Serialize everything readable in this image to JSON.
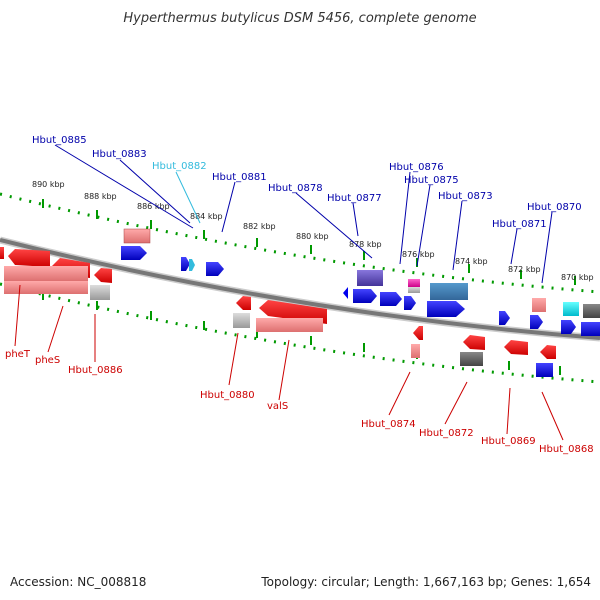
{
  "title": "Hyperthermus butylicus DSM 5456, complete genome",
  "footer": {
    "accession": "Accession: NC_008818",
    "topology": "Topology: circular; Length: 1,667,163 bp; Genes: 1,654"
  },
  "colors": {
    "forward_gene": "#0000ee",
    "reverse_gene": "#ee0000",
    "forward_label": "#0000aa",
    "reverse_label": "#cc0000",
    "highlight_label": "#33bbdd",
    "axis_tick": "#009900",
    "backbone": "#888888"
  },
  "scale_ticks": [
    {
      "label": "890 kbp"
    },
    {
      "label": "888 kbp"
    },
    {
      "label": "886 kbp"
    },
    {
      "label": "884 kbp"
    },
    {
      "label": "882 kbp"
    },
    {
      "label": "880 kbp"
    },
    {
      "label": "878 kbp"
    },
    {
      "label": "876 kbp"
    },
    {
      "label": "874 kbp"
    },
    {
      "label": "872 kbp"
    },
    {
      "label": "870 kbp"
    }
  ],
  "top_labels": [
    {
      "text": "Hbut_0885",
      "color": "#0000aa"
    },
    {
      "text": "Hbut_0883",
      "color": "#0000aa"
    },
    {
      "text": "Hbut_0882",
      "color": "#33bbdd"
    },
    {
      "text": "Hbut_0881",
      "color": "#0000aa"
    },
    {
      "text": "Hbut_0878",
      "color": "#0000aa"
    },
    {
      "text": "Hbut_0877",
      "color": "#0000aa"
    },
    {
      "text": "Hbut_0876",
      "color": "#0000aa"
    },
    {
      "text": "Hbut_0875",
      "color": "#0000aa"
    },
    {
      "text": "Hbut_0873",
      "color": "#0000aa"
    },
    {
      "text": "Hbut_0871",
      "color": "#0000aa"
    },
    {
      "text": "Hbut_0870",
      "color": "#0000aa"
    }
  ],
  "bottom_labels": [
    {
      "text": "pheT",
      "color": "#cc0000"
    },
    {
      "text": "pheS",
      "color": "#cc0000"
    },
    {
      "text": "Hbut_0886",
      "color": "#cc0000"
    },
    {
      "text": "Hbut_0880",
      "color": "#cc0000"
    },
    {
      "text": "valS",
      "color": "#cc0000"
    },
    {
      "text": "Hbut_0874",
      "color": "#cc0000"
    },
    {
      "text": "Hbut_0872",
      "color": "#cc0000"
    },
    {
      "text": "Hbut_0869",
      "color": "#cc0000"
    },
    {
      "text": "Hbut_0868",
      "color": "#cc0000"
    }
  ]
}
